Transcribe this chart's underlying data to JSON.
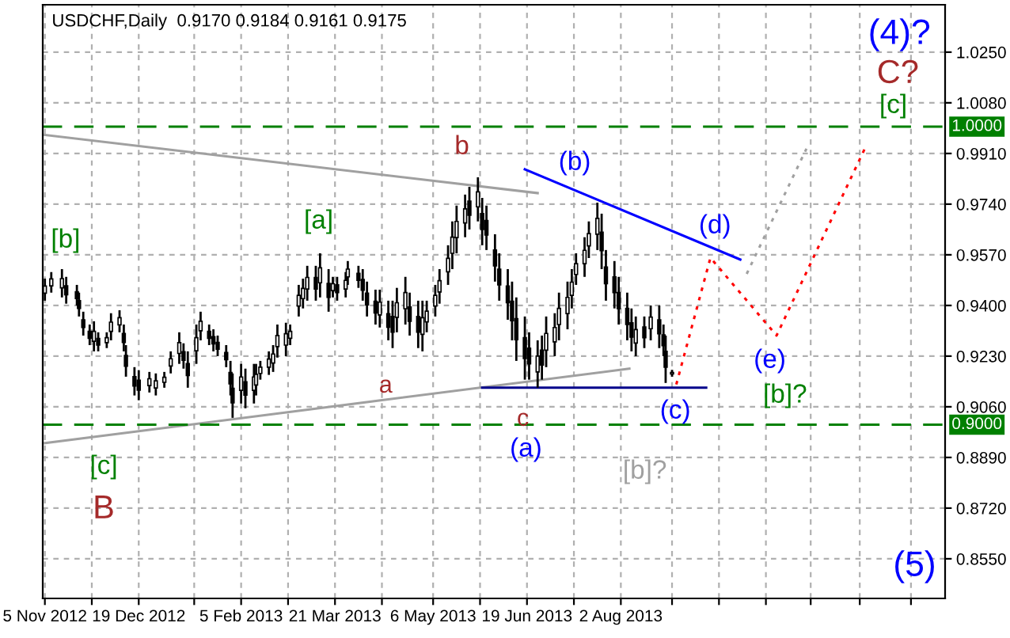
{
  "chart_data": {
    "type": "candlestick",
    "title": "USDCHF,Daily  0.9170 0.9184 0.9161 0.9175",
    "x": [
      "2012-11-05",
      "2012-11-08",
      "2012-11-13",
      "2012-11-15",
      "2012-11-20",
      "2012-11-21",
      "2012-11-23",
      "2012-11-26",
      "2012-11-28",
      "2012-11-30",
      "2012-12-04",
      "2012-12-06",
      "2012-12-10",
      "2012-12-12",
      "2012-12-13",
      "2012-12-17",
      "2012-12-19",
      "2012-12-24",
      "2012-12-27",
      "2012-12-31",
      "2013-01-03",
      "2013-01-07",
      "2013-01-09",
      "2013-01-11",
      "2013-01-15",
      "2013-01-17",
      "2013-01-21",
      "2013-01-23",
      "2013-01-25",
      "2013-01-29",
      "2013-01-31",
      "2013-02-01",
      "2013-02-05",
      "2013-02-07",
      "2013-02-11",
      "2013-02-12",
      "2013-02-14",
      "2013-02-18",
      "2013-02-20",
      "2013-02-22",
      "2013-02-26",
      "2013-02-28",
      "2013-03-04",
      "2013-03-06",
      "2013-03-08",
      "2013-03-12",
      "2013-03-14",
      "2013-03-18",
      "2013-03-20",
      "2013-03-22",
      "2013-03-26",
      "2013-03-27",
      "2013-04-01",
      "2013-04-03",
      "2013-04-05",
      "2013-04-09",
      "2013-04-11",
      "2013-04-15",
      "2013-04-17",
      "2013-04-19",
      "2013-04-23",
      "2013-04-25",
      "2013-04-29",
      "2013-05-01",
      "2013-05-03",
      "2013-05-07",
      "2013-05-09",
      "2013-05-13",
      "2013-05-15",
      "2013-05-17",
      "2013-05-21",
      "2013-05-23",
      "2013-05-27",
      "2013-05-29",
      "2013-05-31",
      "2013-06-04",
      "2013-06-06",
      "2013-06-10",
      "2013-06-12",
      "2013-06-14",
      "2013-06-18",
      "2013-06-20",
      "2013-06-24",
      "2013-06-26",
      "2013-06-28",
      "2013-07-02",
      "2013-07-04",
      "2013-07-08",
      "2013-07-10",
      "2013-07-12",
      "2013-07-16",
      "2013-07-18",
      "2013-07-22",
      "2013-07-24",
      "2013-07-26",
      "2013-07-30",
      "2013-08-01",
      "2013-08-05",
      "2013-08-07",
      "2013-08-09",
      "2013-08-13",
      "2013-08-16",
      "2013-08-20",
      "2013-08-22",
      "2013-08-23",
      "2013-08-26"
    ],
    "ohlc": [
      [
        0.9441,
        0.949,
        0.9416,
        0.9465
      ],
      [
        0.9466,
        0.9512,
        0.9443,
        0.9489
      ],
      [
        0.9459,
        0.9522,
        0.9427,
        0.949
      ],
      [
        0.9466,
        0.9496,
        0.9406,
        0.9436
      ],
      [
        0.9446,
        0.9469,
        0.94,
        0.9423
      ],
      [
        0.9416,
        0.9443,
        0.9363,
        0.939
      ],
      [
        0.9352,
        0.9379,
        0.9299,
        0.9326
      ],
      [
        0.9313,
        0.9336,
        0.9267,
        0.929
      ],
      [
        0.928,
        0.9347,
        0.9246,
        0.9313
      ],
      [
        0.9289,
        0.931,
        0.9246,
        0.9267
      ],
      [
        0.9275,
        0.931,
        0.9257,
        0.9292
      ],
      [
        0.9313,
        0.9374,
        0.9283,
        0.9344
      ],
      [
        0.9335,
        0.9384,
        0.931,
        0.9359
      ],
      [
        0.9306,
        0.9336,
        0.9246,
        0.9276
      ],
      [
        0.9232,
        0.9267,
        0.9161,
        0.9196
      ],
      [
        0.9161,
        0.9193,
        0.9098,
        0.913
      ],
      [
        0.9149,
        0.9183,
        0.9082,
        0.9116
      ],
      [
        0.9131,
        0.9177,
        0.9108,
        0.9154
      ],
      [
        0.9123,
        0.9172,
        0.9098,
        0.9147
      ],
      [
        0.9142,
        0.9177,
        0.9124,
        0.9159
      ],
      [
        0.9197,
        0.9246,
        0.9172,
        0.9221
      ],
      [
        0.9239,
        0.931,
        0.9204,
        0.9275
      ],
      [
        0.9245,
        0.9273,
        0.9188,
        0.9216
      ],
      [
        0.9205,
        0.9246,
        0.9124,
        0.9165
      ],
      [
        0.9248,
        0.9336,
        0.9204,
        0.9292
      ],
      [
        0.9315,
        0.9379,
        0.9283,
        0.9347
      ],
      [
        0.9313,
        0.9336,
        0.9267,
        0.929
      ],
      [
        0.9295,
        0.932,
        0.9246,
        0.9271
      ],
      [
        0.9276,
        0.9299,
        0.923,
        0.9253
      ],
      [
        0.9242,
        0.9267,
        0.9193,
        0.9218
      ],
      [
        0.9175,
        0.9214,
        0.9098,
        0.9137
      ],
      [
        0.9122,
        0.9172,
        0.9023,
        0.9073
      ],
      [
        0.9115,
        0.9204,
        0.9071,
        0.916
      ],
      [
        0.9144,
        0.9188,
        0.9055,
        0.9099
      ],
      [
        0.9115,
        0.9204,
        0.9071,
        0.916
      ],
      [
        0.9133,
        0.9204,
        0.9098,
        0.9169
      ],
      [
        0.9172,
        0.9214,
        0.9151,
        0.9193
      ],
      [
        0.9193,
        0.9246,
        0.9167,
        0.922
      ],
      [
        0.9207,
        0.9267,
        0.9177,
        0.9237
      ],
      [
        0.9262,
        0.9336,
        0.9225,
        0.9299
      ],
      [
        0.9267,
        0.9342,
        0.923,
        0.9305
      ],
      [
        0.929,
        0.9336,
        0.9267,
        0.9313
      ],
      [
        0.9398,
        0.9469,
        0.9363,
        0.9434
      ],
      [
        0.9423,
        0.949,
        0.939,
        0.9457
      ],
      [
        0.9455,
        0.9533,
        0.9416,
        0.9494
      ],
      [
        0.9494,
        0.9533,
        0.9416,
        0.9455
      ],
      [
        0.9476,
        0.9575,
        0.9427,
        0.9526
      ],
      [
        0.9474,
        0.9522,
        0.9379,
        0.9427
      ],
      [
        0.945,
        0.9496,
        0.9427,
        0.9473
      ],
      [
        0.9469,
        0.9496,
        0.9416,
        0.9443
      ],
      [
        0.9455,
        0.9512,
        0.9427,
        0.9484
      ],
      [
        0.9496,
        0.9549,
        0.9469,
        0.9522
      ],
      [
        0.9508,
        0.9533,
        0.9459,
        0.9484
      ],
      [
        0.9487,
        0.9522,
        0.9416,
        0.9451
      ],
      [
        0.9441,
        0.948,
        0.9363,
        0.9402
      ],
      [
        0.9414,
        0.9453,
        0.9336,
        0.9375
      ],
      [
        0.9368,
        0.9453,
        0.9326,
        0.9411
      ],
      [
        0.9372,
        0.9416,
        0.9283,
        0.9327
      ],
      [
        0.9363,
        0.9416,
        0.9257,
        0.931
      ],
      [
        0.936,
        0.9459,
        0.931,
        0.9409
      ],
      [
        0.9389,
        0.9496,
        0.9336,
        0.9443
      ],
      [
        0.9395,
        0.9443,
        0.9299,
        0.9347
      ],
      [
        0.9363,
        0.9416,
        0.9257,
        0.931
      ],
      [
        0.9303,
        0.9416,
        0.9246,
        0.9359
      ],
      [
        0.9345,
        0.9416,
        0.931,
        0.9381
      ],
      [
        0.9398,
        0.9469,
        0.9363,
        0.9434
      ],
      [
        0.9445,
        0.9522,
        0.9406,
        0.9483
      ],
      [
        0.9513,
        0.9602,
        0.9469,
        0.9558
      ],
      [
        0.9575,
        0.9682,
        0.9522,
        0.9629
      ],
      [
        0.9628,
        0.9735,
        0.9575,
        0.9682
      ],
      [
        0.9677,
        0.9772,
        0.9629,
        0.9724
      ],
      [
        0.975,
        0.9798,
        0.9655,
        0.9703
      ],
      [
        0.9731,
        0.983,
        0.9682,
        0.9781
      ],
      [
        0.9708,
        0.9761,
        0.9602,
        0.9655
      ],
      [
        0.9685,
        0.9735,
        0.9586,
        0.9636
      ],
      [
        0.9586,
        0.9639,
        0.948,
        0.9533
      ],
      [
        0.9522,
        0.9575,
        0.9416,
        0.9469
      ],
      [
        0.9465,
        0.9522,
        0.9352,
        0.9409
      ],
      [
        0.9414,
        0.948,
        0.9283,
        0.9349
      ],
      [
        0.9356,
        0.9427,
        0.9214,
        0.9285
      ],
      [
        0.9292,
        0.9363,
        0.9151,
        0.9222
      ],
      [
        0.9257,
        0.931,
        0.9151,
        0.9204
      ],
      [
        0.9177,
        0.9283,
        0.9124,
        0.923
      ],
      [
        0.925,
        0.9299,
        0.9151,
        0.92
      ],
      [
        0.925,
        0.9363,
        0.9193,
        0.9306
      ],
      [
        0.9278,
        0.9374,
        0.923,
        0.9326
      ],
      [
        0.9336,
        0.9443,
        0.9283,
        0.939
      ],
      [
        0.9373,
        0.948,
        0.932,
        0.9427
      ],
      [
        0.9434,
        0.9522,
        0.939,
        0.9478
      ],
      [
        0.9504,
        0.9575,
        0.9469,
        0.954
      ],
      [
        0.954,
        0.9629,
        0.9496,
        0.9585
      ],
      [
        0.96,
        0.9682,
        0.9559,
        0.9641
      ],
      [
        0.9639,
        0.9745,
        0.9586,
        0.9692
      ],
      [
        0.9646,
        0.9708,
        0.9522,
        0.9584
      ],
      [
        0.9529,
        0.9586,
        0.9416,
        0.9473
      ],
      [
        0.9496,
        0.9549,
        0.939,
        0.9443
      ],
      [
        0.9443,
        0.9496,
        0.9336,
        0.9389
      ],
      [
        0.939,
        0.9443,
        0.9283,
        0.9336
      ],
      [
        0.9342,
        0.939,
        0.9246,
        0.9294
      ],
      [
        0.9274,
        0.9363,
        0.923,
        0.9319
      ],
      [
        0.9328,
        0.9363,
        0.9257,
        0.9292
      ],
      [
        0.9322,
        0.94,
        0.9283,
        0.9361
      ],
      [
        0.9352,
        0.94,
        0.9257,
        0.9305
      ],
      [
        0.9301,
        0.9336,
        0.923,
        0.9265
      ],
      [
        0.9246,
        0.9299,
        0.914,
        0.9193
      ],
      [
        0.917,
        0.9184,
        0.9161,
        0.9175
      ]
    ],
    "series": [
      {
        "type": "line",
        "x": [
          "2012-11-05",
          "2013-06-24"
        ],
        "values": [
          0.9972,
          0.9777
        ],
        "color": "#a0a0a0",
        "line_style": "solid"
      },
      {
        "type": "line",
        "x": [
          "2012-11-05",
          "2013-08-06"
        ],
        "values": [
          0.8938,
          0.9188
        ],
        "color": "#a0a0a0",
        "line_style": "solid"
      },
      {
        "type": "line",
        "x": [
          "2013-06-18",
          "2013-09-27"
        ],
        "values": [
          0.9857,
          0.9554
        ],
        "color": "#0000ff",
        "line_style": "solid"
      },
      {
        "type": "line",
        "x": [
          "2013-05-29",
          "2013-09-11"
        ],
        "values": [
          0.9124,
          0.9124
        ],
        "color": "#00008b",
        "line_style": "solid"
      },
      {
        "type": "line",
        "x": [
          "2013-08-28",
          "2013-09-13",
          "2013-10-14",
          "2013-11-25"
        ],
        "values": [
          0.9135,
          0.956,
          0.9299,
          0.9936
        ],
        "color": "#ff0000",
        "line_style": "dotted"
      },
      {
        "type": "line",
        "x": [
          "2013-09-30",
          "2013-10-28"
        ],
        "values": [
          0.9506,
          0.9926
        ],
        "color": "#a0a0a0",
        "line_style": "dotted"
      }
    ],
    "ref_lines": [
      {
        "axis": "y",
        "value": 1.0,
        "label": "1.0000",
        "color": "#008000",
        "line_style": "dashed"
      },
      {
        "axis": "y",
        "value": 0.9,
        "label": "0.9000",
        "color": "#008000",
        "line_style": "dashed"
      }
    ],
    "annotations": [
      "[b]",
      "[a]",
      "b",
      "(b)",
      "(d)",
      "(e)",
      "[b]?",
      "a",
      "c",
      "(a)",
      "(c)",
      "[b]?",
      "[c]",
      "B",
      "[c]",
      "C?",
      "(4)?",
      "(5)"
    ],
    "xlim": [
      "2012-11-04",
      "2014-01-01"
    ],
    "xticks": [
      {
        "value": "2012-11-05",
        "label": "5 Nov 2012"
      },
      {
        "value": "2012-11-27",
        "label": null
      },
      {
        "value": "2012-12-19",
        "label": "19 Dec 2012"
      },
      {
        "value": "2013-01-14",
        "label": null
      },
      {
        "value": "2013-02-05",
        "label": "5 Feb 2013"
      },
      {
        "value": "2013-02-27",
        "label": null
      },
      {
        "value": "2013-03-21",
        "label": "21 Mar 2013"
      },
      {
        "value": "2013-04-12",
        "label": null
      },
      {
        "value": "2013-05-06",
        "label": "6 May 2013"
      },
      {
        "value": "2013-05-28",
        "label": null
      },
      {
        "value": "2013-06-19",
        "label": "19 Jun 2013"
      },
      {
        "value": "2013-07-11",
        "label": null
      },
      {
        "value": "2013-08-02",
        "label": "2 Aug 2013"
      },
      {
        "value": "2013-08-26",
        "label": null
      },
      {
        "value": "2013-09-17",
        "label": null
      },
      {
        "value": "2013-10-09",
        "label": null
      },
      {
        "value": "2013-10-30",
        "label": null
      },
      {
        "value": "2013-11-22",
        "label": null
      },
      {
        "value": "2013-12-16",
        "label": null
      }
    ],
    "ylim": [
      0.8417,
      1.0409
    ],
    "yticks": [
      {
        "value": 0.855,
        "label": "0.8550"
      },
      {
        "value": 0.872,
        "label": "0.8720"
      },
      {
        "value": 0.889,
        "label": "0.8890"
      },
      {
        "value": 0.906,
        "label": "0.9060"
      },
      {
        "value": 0.923,
        "label": "0.9230"
      },
      {
        "value": 0.94,
        "label": "0.9400"
      },
      {
        "value": 0.957,
        "label": "0.9570"
      },
      {
        "value": 0.974,
        "label": "0.9740"
      },
      {
        "value": 0.991,
        "label": "0.9910"
      },
      {
        "value": 1.008,
        "label": "1.0080"
      },
      {
        "value": 1.025,
        "label": "1.0250"
      }
    ],
    "grid": true,
    "color": "#000000"
  }
}
